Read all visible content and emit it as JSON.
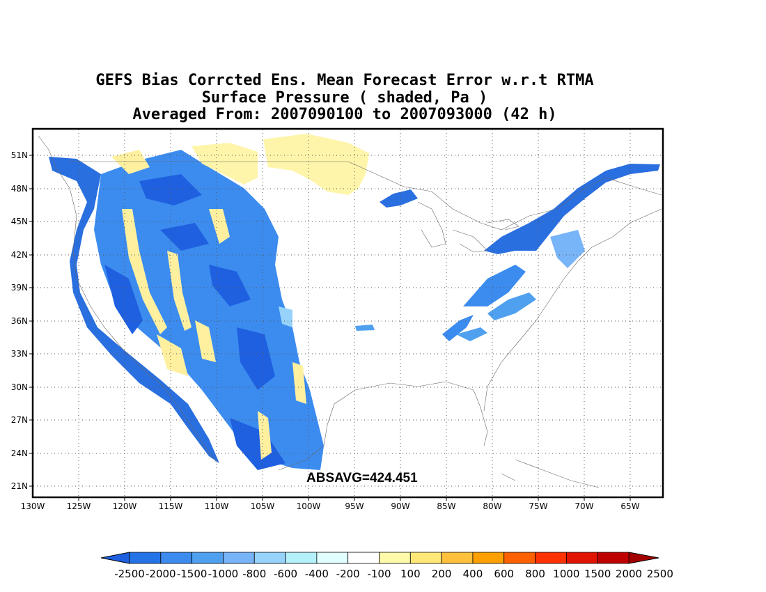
{
  "titles": {
    "line1": "GEFS Bias Corrcted Ens. Mean Forecast Error w.r.t RTMA",
    "line2": "Surface Pressure ( shaded, Pa )",
    "line3": "Averaged From: 2007090100 to 2007093000 (42 h)"
  },
  "annotation": "ABSAVG=424.451",
  "map": {
    "lon_range": [
      -130,
      -132
    ],
    "lat_labels": [
      "51N",
      "48N",
      "45N",
      "42N",
      "39N",
      "36N",
      "33N",
      "30N",
      "27N",
      "24N",
      "21N"
    ],
    "lon_labels": [
      "130W",
      "125W",
      "120W",
      "115W",
      "110W",
      "105W",
      "100W",
      "95W",
      "90W",
      "85W",
      "80W",
      "75W",
      "70W",
      "65W"
    ],
    "grid": "dotted"
  },
  "colorbar": {
    "labels": [
      "-2500",
      "-2000",
      "-1500",
      "-1000",
      "-800",
      "-600",
      "-400",
      "-200",
      "-100",
      "100",
      "200",
      "400",
      "600",
      "800",
      "1000",
      "1500",
      "2000",
      "2500"
    ],
    "colors": [
      "#1e60e0",
      "#2474e8",
      "#3c8cf0",
      "#50a0f0",
      "#78b4f8",
      "#96d2fa",
      "#b4f0fa",
      "#e1ffff",
      "#ffffff",
      "#fffaaa",
      "#ffe878",
      "#ffc03c",
      "#ffa000",
      "#ff6000",
      "#ff3200",
      "#e11400",
      "#c00000",
      "#a50000"
    ]
  },
  "palette": {
    "blue_dark": "#1e60e0",
    "blue_mid": "#3c8cf0",
    "blue_light": "#96d2fa",
    "yellow": "#fff5aa",
    "yellow_deep": "#ffe878"
  }
}
